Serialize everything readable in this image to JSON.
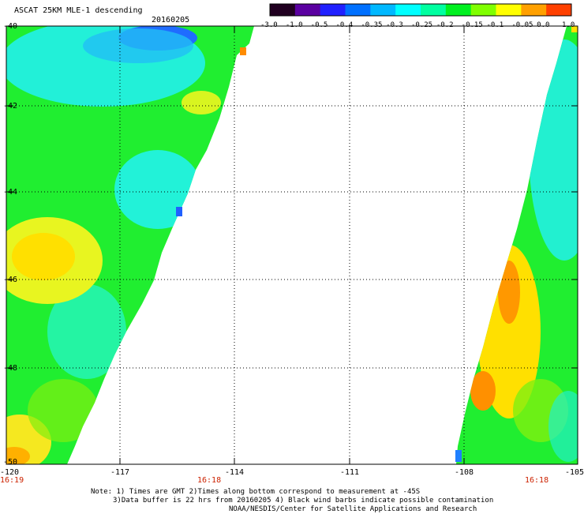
{
  "header": {
    "title": "ASCAT 25KM MLE-1 descending",
    "date": "20160205"
  },
  "colorbar": {
    "ticks": [
      "-3.0",
      "-1.0",
      "-0.5",
      "-0.4",
      "-0.35",
      "-0.3",
      "-0.25",
      "-0.2",
      "-0.15",
      "-0.1",
      "-0.05",
      "0.0",
      "1.0"
    ],
    "colors": [
      "#200020",
      "#5a00a0",
      "#2020ff",
      "#0070ff",
      "#00b8ff",
      "#00ffff",
      "#00ffa0",
      "#00f020",
      "#80ff00",
      "#ffff00",
      "#ffa000",
      "#ff4000"
    ]
  },
  "map": {
    "lon_ticks": [
      "-120",
      "-117",
      "-114",
      "-111",
      "-108",
      "-105"
    ],
    "lat_ticks": [
      "-40",
      "-42",
      "-44",
      "-46",
      "-48",
      "-50"
    ],
    "times": {
      "bottom_left": "16:19",
      "left_swath": "16:18",
      "right_swath": "16:18"
    }
  },
  "footer": {
    "line1": "Note: 1) Times are GMT 2)Times along bottom correspond to measurement at -45S",
    "line2": "3)Data buffer is 22 hrs from 20160205 4) Black wind barbs indicate possible contamination",
    "line3": "NOAA/NESDIS/Center for Satellite Applications and Research"
  }
}
